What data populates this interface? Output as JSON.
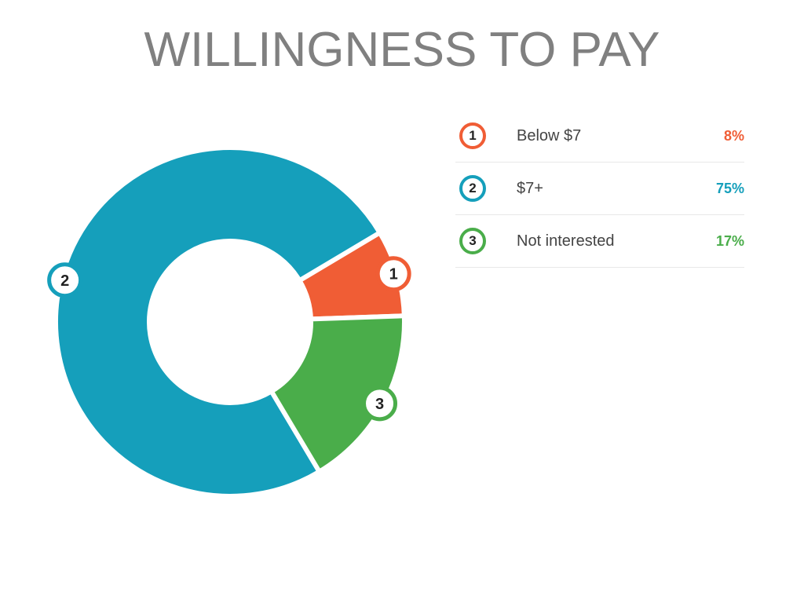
{
  "title": "WILLINGNESS TO PAY",
  "chart_data": {
    "type": "pie",
    "donut": true,
    "categories": [
      "Below $7",
      "$7+",
      "Not interested"
    ],
    "values": [
      8,
      75,
      17
    ],
    "value_labels": [
      "8%",
      "75%",
      "17%"
    ],
    "markers": [
      "1",
      "2",
      "3"
    ],
    "colors": [
      "#f05d35",
      "#159fbb",
      "#4aad4a"
    ],
    "legend_position": "right"
  }
}
